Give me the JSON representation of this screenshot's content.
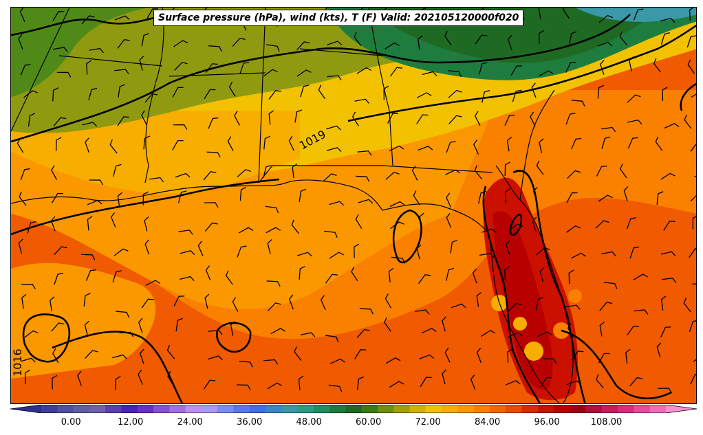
{
  "title": "Surface pressure (hPa), wind (kts), T (F) Valid: 202105120000f020",
  "contour_labels": [
    "1019",
    "1016"
  ],
  "colorbar": {
    "ticks": [
      "0.00",
      "12.00",
      "24.00",
      "36.00",
      "48.00",
      "60.00",
      "72.00",
      "84.00",
      "96.00",
      "108.00"
    ],
    "range": [
      -6,
      120
    ],
    "colors": [
      "#2b2f8f",
      "#3d3f9a",
      "#5050a2",
      "#5f5fa8",
      "#6e62ad",
      "#5a3fb0",
      "#4a22b6",
      "#6a2fc8",
      "#8b4fd6",
      "#a36fe2",
      "#c08ef0",
      "#a99af6",
      "#7c8cf5",
      "#5a78ee",
      "#3f6fe6",
      "#3a86c8",
      "#3a98a8",
      "#2b9c84",
      "#1f8f5e",
      "#1e7d3e",
      "#1f6a22",
      "#3a7d14",
      "#6e8f10",
      "#a2a00a",
      "#d2b200",
      "#f2c200",
      "#f7ae00",
      "#fb9800",
      "#fa8000",
      "#f66400",
      "#f04800",
      "#e02800",
      "#cc1000",
      "#b80000",
      "#a00010",
      "#b0103a",
      "#c81c5e",
      "#dd2a80",
      "#ea4a9e",
      "#f06cb8",
      "#f792d0"
    ]
  },
  "colors": {
    "cold_green": "#1e7d3e",
    "olive": "#8f9a10",
    "yellow": "#f2c200",
    "orange": "#fb9800",
    "red_orange": "#f05a00",
    "hot_red": "#cc1000"
  }
}
